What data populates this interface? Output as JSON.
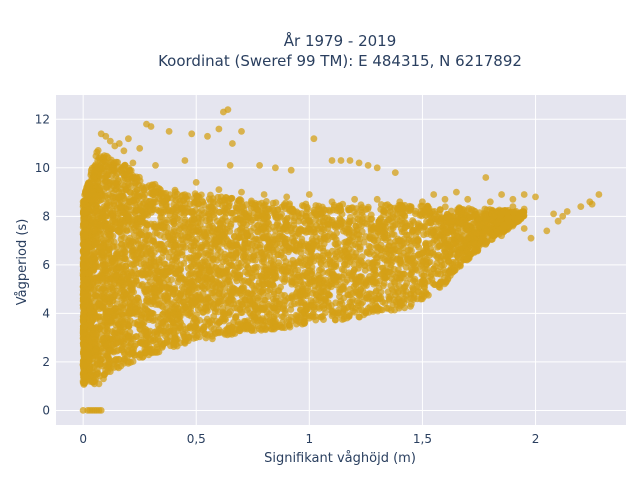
{
  "chart_data": {
    "type": "scatter",
    "title_line1": "År 1979 - 2019",
    "title_line2": "Koordinat (Sweref 99 TM): E 484315, N 6217892",
    "xlabel": "Signifikant våghöjd (m)",
    "ylabel": "Vågperiod (s)",
    "xlim": [
      -0.12,
      2.4
    ],
    "ylim": [
      -0.6,
      13
    ],
    "x_ticks": [
      0,
      0.5,
      1,
      1.5,
      2
    ],
    "x_tick_labels": [
      "0",
      "0,5",
      "1",
      "1,5",
      "2"
    ],
    "y_ticks": [
      0,
      2,
      4,
      6,
      8,
      10,
      12
    ],
    "y_tick_labels": [
      "0",
      "2",
      "4",
      "6",
      "8",
      "10",
      "12"
    ],
    "grid": true,
    "legend": "none",
    "colors": {
      "marker": "#D4A017",
      "plot_bg": "#E5E5EF",
      "grid": "#ffffff",
      "text": "#2a3f5f"
    },
    "series": [
      {
        "values": [
          [
            0.0,
            0.0
          ],
          [
            0.02,
            0.0
          ],
          [
            0.04,
            0.0
          ],
          [
            0.06,
            0.0
          ],
          [
            0.08,
            0.0
          ],
          [
            0.03,
            0.0
          ],
          [
            0.05,
            0.0
          ],
          [
            0.07,
            0.0
          ],
          [
            0.0,
            1.9
          ],
          [
            0.0,
            3.2
          ],
          [
            0.0,
            5.1
          ],
          [
            0.0,
            8.6
          ],
          [
            0.01,
            1.4
          ],
          [
            0.01,
            7.2
          ],
          [
            0.02,
            2.3
          ],
          [
            0.02,
            9.3
          ],
          [
            0.03,
            1.2
          ],
          [
            0.05,
            1.1
          ],
          [
            0.07,
            1.1
          ],
          [
            0.09,
            1.3
          ],
          [
            0.12,
            1.6
          ],
          [
            0.15,
            1.8
          ],
          [
            0.2,
            2.0
          ],
          [
            0.25,
            2.3
          ],
          [
            0.3,
            2.5
          ],
          [
            0.35,
            2.6
          ],
          [
            0.4,
            2.8
          ],
          [
            0.45,
            2.9
          ],
          [
            0.5,
            3.0
          ],
          [
            0.55,
            3.1
          ],
          [
            0.6,
            3.2
          ],
          [
            0.65,
            3.3
          ],
          [
            0.7,
            3.4
          ],
          [
            0.75,
            3.45
          ],
          [
            0.8,
            3.5
          ],
          [
            0.85,
            3.6
          ],
          [
            0.9,
            3.65
          ],
          [
            0.95,
            3.7
          ],
          [
            1.0,
            3.8
          ],
          [
            1.05,
            3.85
          ],
          [
            1.1,
            3.9
          ],
          [
            1.15,
            4.0
          ],
          [
            1.2,
            4.05
          ],
          [
            1.25,
            4.1
          ],
          [
            1.3,
            4.15
          ],
          [
            1.35,
            4.2
          ],
          [
            1.4,
            4.3
          ],
          [
            0.05,
            9.8
          ],
          [
            0.07,
            10.4
          ],
          [
            0.08,
            11.4
          ],
          [
            0.1,
            11.3
          ],
          [
            0.12,
            11.1
          ],
          [
            0.14,
            10.9
          ],
          [
            0.16,
            11.0
          ],
          [
            0.18,
            10.7
          ],
          [
            0.2,
            11.2
          ],
          [
            0.22,
            10.2
          ],
          [
            0.25,
            10.8
          ],
          [
            0.28,
            11.8
          ],
          [
            0.3,
            11.7
          ],
          [
            0.32,
            10.1
          ],
          [
            0.38,
            11.5
          ],
          [
            0.45,
            10.3
          ],
          [
            0.48,
            11.4
          ],
          [
            0.55,
            11.3
          ],
          [
            0.6,
            11.6
          ],
          [
            0.62,
            12.3
          ],
          [
            0.64,
            12.4
          ],
          [
            0.66,
            11.0
          ],
          [
            0.7,
            11.5
          ],
          [
            0.65,
            10.1
          ],
          [
            0.78,
            10.1
          ],
          [
            0.85,
            10.0
          ],
          [
            0.92,
            9.9
          ],
          [
            1.02,
            11.2
          ],
          [
            1.1,
            10.3
          ],
          [
            1.14,
            10.3
          ],
          [
            1.18,
            10.3
          ],
          [
            1.22,
            10.2
          ],
          [
            1.26,
            10.1
          ],
          [
            1.3,
            10.0
          ],
          [
            1.38,
            9.8
          ],
          [
            0.5,
            9.4
          ],
          [
            0.6,
            9.1
          ],
          [
            0.7,
            9.0
          ],
          [
            0.8,
            8.9
          ],
          [
            0.9,
            8.8
          ],
          [
            1.0,
            8.9
          ],
          [
            1.1,
            8.6
          ],
          [
            1.2,
            8.7
          ],
          [
            1.3,
            8.7
          ],
          [
            1.4,
            8.6
          ],
          [
            1.5,
            8.6
          ],
          [
            1.6,
            8.7
          ],
          [
            1.7,
            8.7
          ],
          [
            1.8,
            8.6
          ],
          [
            1.9,
            8.7
          ],
          [
            1.95,
            8.9
          ],
          [
            2.0,
            8.8
          ],
          [
            1.78,
            9.6
          ],
          [
            1.55,
            8.9
          ],
          [
            1.65,
            9.0
          ],
          [
            1.85,
            8.9
          ],
          [
            1.9,
            8.4
          ],
          [
            1.95,
            8.3
          ],
          [
            1.98,
            7.1
          ],
          [
            2.05,
            7.4
          ],
          [
            2.08,
            8.1
          ],
          [
            2.1,
            7.8
          ],
          [
            2.12,
            8.0
          ],
          [
            2.14,
            8.2
          ],
          [
            2.2,
            8.4
          ],
          [
            2.25,
            8.5
          ],
          [
            2.28,
            8.9
          ],
          [
            2.24,
            8.6
          ],
          [
            1.95,
            7.5
          ],
          [
            1.85,
            7.2
          ],
          [
            1.78,
            7.4
          ],
          [
            1.7,
            7.1
          ],
          [
            1.6,
            6.9
          ],
          [
            1.5,
            6.5
          ],
          [
            1.4,
            6.2
          ],
          [
            1.3,
            6.1
          ],
          [
            1.2,
            5.8
          ],
          [
            1.1,
            5.6
          ],
          [
            1.45,
            5.6
          ],
          [
            1.35,
            5.7
          ],
          [
            1.25,
            5.3
          ],
          [
            1.15,
            5.0
          ],
          [
            1.05,
            4.9
          ],
          [
            0.95,
            4.7
          ],
          [
            0.2,
            4.0
          ],
          [
            0.3,
            3.8
          ],
          [
            0.4,
            4.2
          ],
          [
            0.5,
            4.5
          ],
          [
            0.6,
            4.8
          ],
          [
            0.7,
            5.0
          ],
          [
            0.8,
            5.2
          ],
          [
            0.9,
            5.4
          ],
          [
            0.2,
            5.5
          ],
          [
            0.3,
            6.2
          ],
          [
            0.4,
            6.6
          ],
          [
            0.5,
            6.9
          ],
          [
            0.6,
            7.1
          ],
          [
            0.7,
            7.3
          ],
          [
            0.8,
            7.5
          ],
          [
            0.9,
            7.7
          ],
          [
            1.0,
            7.8
          ],
          [
            0.2,
            8.0
          ],
          [
            0.3,
            8.5
          ],
          [
            0.4,
            8.3
          ],
          [
            0.1,
            6.0
          ],
          [
            0.1,
            4.0
          ],
          [
            0.1,
            8.0
          ],
          [
            0.05,
            6.5
          ]
        ]
      }
    ],
    "dense_region": {
      "lower": [
        [
          0.0,
          1.0
        ],
        [
          0.02,
          1.3
        ],
        [
          0.05,
          1.1
        ],
        [
          0.08,
          1.3
        ],
        [
          0.12,
          1.6
        ],
        [
          0.2,
          1.9
        ],
        [
          0.3,
          2.3
        ],
        [
          0.4,
          2.6
        ],
        [
          0.5,
          2.8
        ],
        [
          0.6,
          3.0
        ],
        [
          0.7,
          3.2
        ],
        [
          0.8,
          3.3
        ],
        [
          0.9,
          3.4
        ],
        [
          1.0,
          3.6
        ],
        [
          1.1,
          3.7
        ],
        [
          1.2,
          3.8
        ],
        [
          1.3,
          4.0
        ],
        [
          1.4,
          4.1
        ],
        [
          1.5,
          4.5
        ],
        [
          1.6,
          5.2
        ],
        [
          1.7,
          6.2
        ],
        [
          1.8,
          7.0
        ],
        [
          1.9,
          7.6
        ],
        [
          1.95,
          8.0
        ]
      ],
      "upper": [
        [
          0.0,
          8.6
        ],
        [
          0.02,
          9.5
        ],
        [
          0.06,
          10.8
        ],
        [
          0.1,
          10.5
        ],
        [
          0.18,
          10.2
        ],
        [
          0.25,
          9.6
        ],
        [
          0.35,
          9.2
        ],
        [
          0.45,
          9.0
        ],
        [
          0.55,
          8.9
        ],
        [
          0.7,
          8.7
        ],
        [
          0.85,
          8.6
        ],
        [
          1.0,
          8.5
        ],
        [
          1.2,
          8.5
        ],
        [
          1.4,
          8.5
        ],
        [
          1.6,
          8.4
        ],
        [
          1.8,
          8.3
        ],
        [
          1.95,
          8.2
        ]
      ]
    }
  }
}
